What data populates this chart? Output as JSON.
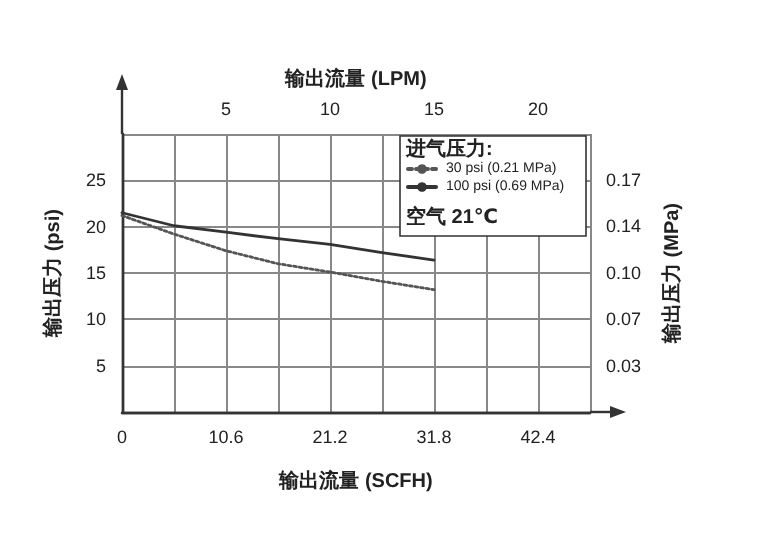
{
  "chart_data": {
    "type": "line",
    "xlabel": "输出流量 (SCFH)",
    "x2label": "输出流量 (LPM)",
    "ylabel": "输出压力 (psi)",
    "y2label": "输出压力 (MPa)",
    "legend_title": "进气压力:",
    "annotations": [
      "空气 21℃"
    ],
    "xlim": [
      0,
      47.7
    ],
    "xticks": [
      0,
      10.6,
      21.2,
      31.8,
      42.4
    ],
    "x2lim": [
      0,
      22.5
    ],
    "x2ticks": [
      {
        "value": 0,
        "label": null
      },
      {
        "value": 2.5,
        "label": null
      },
      5,
      {
        "value": 7.5,
        "label": null
      },
      10,
      {
        "value": 12.5,
        "label": null
      },
      15,
      {
        "value": 17.5,
        "label": null
      },
      20
    ],
    "ylim": [
      0,
      30
    ],
    "yticks": [
      5,
      10,
      15,
      20,
      25
    ],
    "y2lim": [
      0,
      0.2068
    ],
    "y2ticks": [
      {
        "value": 0.0345,
        "label": "0.03"
      },
      {
        "value": 0.069,
        "label": "0.07"
      },
      {
        "value": 0.1034,
        "label": "0.10"
      },
      {
        "value": 0.1379,
        "label": "0.14"
      },
      {
        "value": 0.1724,
        "label": "0.17"
      }
    ],
    "x": [
      0,
      5.3,
      10.6,
      15.9,
      21.2,
      26.5,
      31.8
    ],
    "series": [
      {
        "name": "30 psi (0.21 MPa)",
        "color": "#555555",
        "line_style": "dotted",
        "values": [
          21.2,
          19.2,
          17.4,
          16.0,
          15.1,
          14.1,
          13.2
        ]
      },
      {
        "name": "100 psi (0.69 MPa)",
        "color": "#333333",
        "line_style": "solid",
        "values": [
          21.5,
          20.1,
          19.4,
          18.7,
          18.1,
          17.2,
          16.4
        ]
      }
    ],
    "grid": true,
    "legend": "top right",
    "marker": "none"
  }
}
